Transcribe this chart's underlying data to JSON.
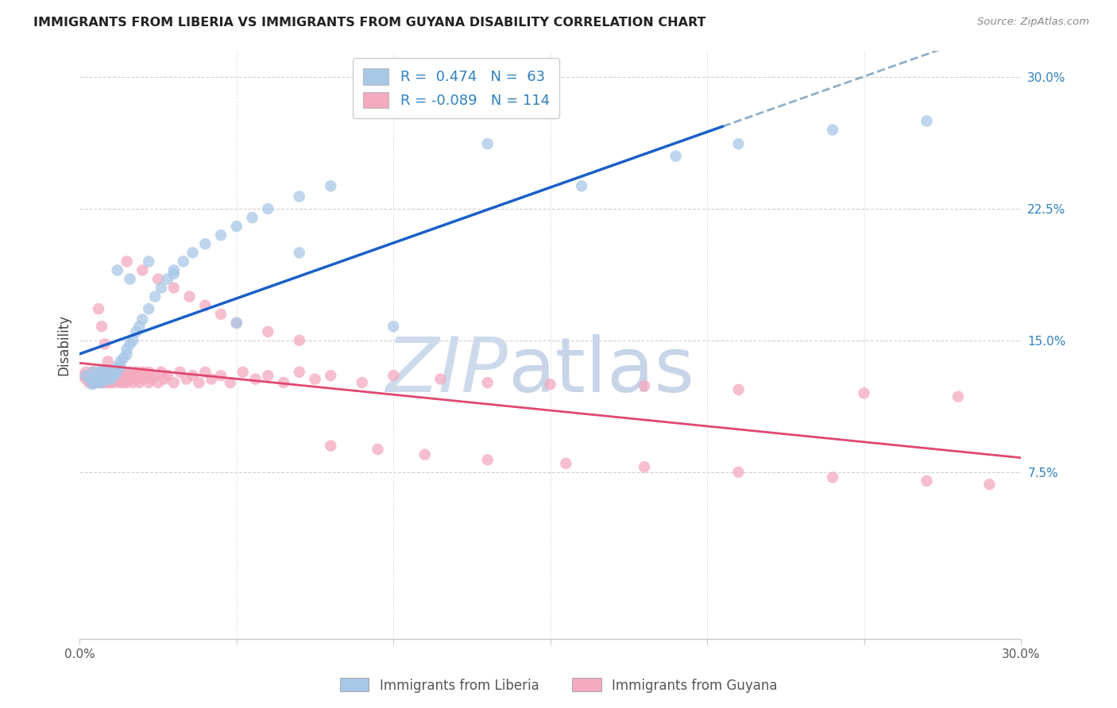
{
  "title": "IMMIGRANTS FROM LIBERIA VS IMMIGRANTS FROM GUYANA DISABILITY CORRELATION CHART",
  "source": "Source: ZipAtlas.com",
  "ylabel": "Disability",
  "xlim": [
    0.0,
    0.3
  ],
  "ylim": [
    -0.02,
    0.315
  ],
  "liberia_R": 0.474,
  "liberia_N": 63,
  "guyana_R": -0.089,
  "guyana_N": 114,
  "liberia_color": "#a8c8e8",
  "guyana_color": "#f4aabf",
  "liberia_line_color": "#1a5fc8",
  "guyana_line_color": "#e04870",
  "dashed_line_color": "#90aec8",
  "background_color": "#ffffff",
  "grid_color": "#cccccc",
  "yticks": [
    0.075,
    0.15,
    0.225,
    0.3
  ],
  "ytick_labels": [
    "7.5%",
    "15.0%",
    "22.5%",
    "30.0%"
  ],
  "legend_color": "#3080c0",
  "title_color": "#222222",
  "source_color": "#888888",
  "bottom_legend_color": "#555555",
  "watermark_zip_color": "#c8d8ec",
  "watermark_atlas_color": "#c8d8ec",
  "liberia_x": [
    0.002,
    0.003,
    0.004,
    0.004,
    0.005,
    0.005,
    0.005,
    0.006,
    0.006,
    0.006,
    0.007,
    0.007,
    0.007,
    0.008,
    0.008,
    0.008,
    0.009,
    0.009,
    0.009,
    0.01,
    0.01,
    0.01,
    0.011,
    0.011,
    0.012,
    0.012,
    0.013,
    0.013,
    0.014,
    0.015,
    0.015,
    0.016,
    0.017,
    0.018,
    0.019,
    0.02,
    0.022,
    0.024,
    0.026,
    0.028,
    0.03,
    0.033,
    0.036,
    0.04,
    0.045,
    0.05,
    0.055,
    0.06,
    0.07,
    0.08,
    0.03,
    0.05,
    0.07,
    0.1,
    0.13,
    0.16,
    0.19,
    0.21,
    0.24,
    0.27,
    0.022,
    0.016,
    0.012
  ],
  "liberia_y": [
    0.13,
    0.128,
    0.125,
    0.132,
    0.126,
    0.13,
    0.128,
    0.132,
    0.126,
    0.128,
    0.13,
    0.126,
    0.132,
    0.13,
    0.128,
    0.132,
    0.13,
    0.128,
    0.13,
    0.132,
    0.128,
    0.13,
    0.132,
    0.13,
    0.135,
    0.132,
    0.138,
    0.135,
    0.14,
    0.145,
    0.142,
    0.148,
    0.15,
    0.155,
    0.158,
    0.162,
    0.168,
    0.175,
    0.18,
    0.185,
    0.19,
    0.195,
    0.2,
    0.205,
    0.21,
    0.215,
    0.22,
    0.225,
    0.232,
    0.238,
    0.188,
    0.16,
    0.2,
    0.158,
    0.262,
    0.238,
    0.255,
    0.262,
    0.27,
    0.275,
    0.195,
    0.185,
    0.19
  ],
  "guyana_x": [
    0.001,
    0.002,
    0.002,
    0.003,
    0.003,
    0.003,
    0.004,
    0.004,
    0.004,
    0.005,
    0.005,
    0.005,
    0.005,
    0.006,
    0.006,
    0.006,
    0.006,
    0.007,
    0.007,
    0.007,
    0.007,
    0.008,
    0.008,
    0.008,
    0.008,
    0.009,
    0.009,
    0.009,
    0.01,
    0.01,
    0.01,
    0.01,
    0.011,
    0.011,
    0.011,
    0.012,
    0.012,
    0.012,
    0.013,
    0.013,
    0.013,
    0.014,
    0.014,
    0.015,
    0.015,
    0.015,
    0.016,
    0.016,
    0.017,
    0.017,
    0.018,
    0.018,
    0.019,
    0.019,
    0.02,
    0.02,
    0.021,
    0.022,
    0.022,
    0.023,
    0.024,
    0.025,
    0.026,
    0.027,
    0.028,
    0.03,
    0.032,
    0.034,
    0.036,
    0.038,
    0.04,
    0.042,
    0.045,
    0.048,
    0.052,
    0.056,
    0.06,
    0.065,
    0.07,
    0.075,
    0.08,
    0.09,
    0.1,
    0.115,
    0.13,
    0.15,
    0.18,
    0.21,
    0.25,
    0.28,
    0.015,
    0.02,
    0.025,
    0.03,
    0.035,
    0.04,
    0.045,
    0.05,
    0.06,
    0.07,
    0.08,
    0.095,
    0.11,
    0.13,
    0.155,
    0.18,
    0.21,
    0.24,
    0.27,
    0.29,
    0.006,
    0.007,
    0.008,
    0.009
  ],
  "guyana_y": [
    0.13,
    0.128,
    0.132,
    0.126,
    0.13,
    0.128,
    0.132,
    0.126,
    0.128,
    0.13,
    0.126,
    0.128,
    0.132,
    0.13,
    0.128,
    0.126,
    0.13,
    0.132,
    0.128,
    0.126,
    0.13,
    0.128,
    0.132,
    0.126,
    0.13,
    0.128,
    0.132,
    0.126,
    0.13,
    0.128,
    0.126,
    0.132,
    0.13,
    0.128,
    0.126,
    0.132,
    0.128,
    0.13,
    0.126,
    0.13,
    0.128,
    0.132,
    0.126,
    0.13,
    0.128,
    0.126,
    0.132,
    0.128,
    0.13,
    0.126,
    0.132,
    0.128,
    0.13,
    0.126,
    0.132,
    0.128,
    0.13,
    0.126,
    0.132,
    0.128,
    0.13,
    0.126,
    0.132,
    0.128,
    0.13,
    0.126,
    0.132,
    0.128,
    0.13,
    0.126,
    0.132,
    0.128,
    0.13,
    0.126,
    0.132,
    0.128,
    0.13,
    0.126,
    0.132,
    0.128,
    0.13,
    0.126,
    0.13,
    0.128,
    0.126,
    0.125,
    0.124,
    0.122,
    0.12,
    0.118,
    0.195,
    0.19,
    0.185,
    0.18,
    0.175,
    0.17,
    0.165,
    0.16,
    0.155,
    0.15,
    0.09,
    0.088,
    0.085,
    0.082,
    0.08,
    0.078,
    0.075,
    0.072,
    0.07,
    0.068,
    0.168,
    0.158,
    0.148,
    0.138
  ]
}
